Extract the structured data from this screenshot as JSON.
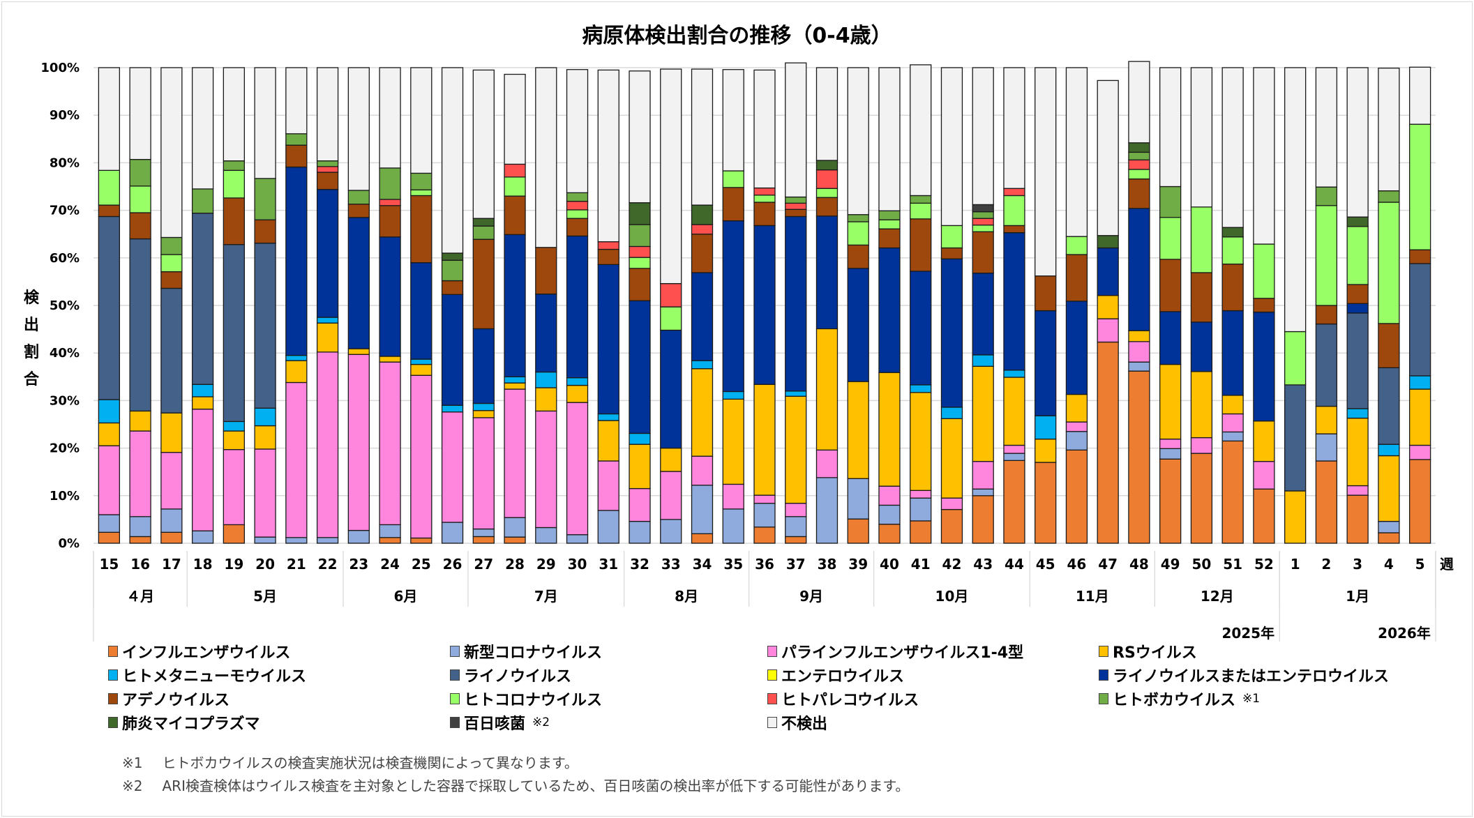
{
  "title": "病原体検出割合の推移（0-4歳）",
  "ylabel": "検出割合",
  "week_unit": "週",
  "chart_data": {
    "type": "bar",
    "stacked": true,
    "percent": true,
    "title": "病原体検出割合の推移（0-4歳）",
    "ylabel": "検出割合",
    "xlabel": "週",
    "ylim": [
      0,
      100
    ],
    "yticks": [
      "0%",
      "10%",
      "20%",
      "30%",
      "40%",
      "50%",
      "60%",
      "70%",
      "80%",
      "90%",
      "100%"
    ],
    "grid": true,
    "legend_position": "bottom",
    "categories": [
      "15",
      "16",
      "17",
      "18",
      "19",
      "20",
      "21",
      "22",
      "23",
      "24",
      "25",
      "26",
      "27",
      "28",
      "29",
      "30",
      "31",
      "32",
      "33",
      "34",
      "35",
      "36",
      "37",
      "38",
      "39",
      "40",
      "41",
      "42",
      "43",
      "44",
      "45",
      "46",
      "47",
      "48",
      "49",
      "50",
      "51",
      "52",
      "1",
      "2",
      "3",
      "4",
      "5"
    ],
    "months": [
      {
        "label": "４月",
        "start": 0,
        "end": 2
      },
      {
        "label": "5月",
        "start": 3,
        "end": 7
      },
      {
        "label": "6月",
        "start": 8,
        "end": 11
      },
      {
        "label": "7月",
        "start": 12,
        "end": 16
      },
      {
        "label": "8月",
        "start": 17,
        "end": 20
      },
      {
        "label": "9月",
        "start": 21,
        "end": 24
      },
      {
        "label": "10月",
        "start": 25,
        "end": 29
      },
      {
        "label": "11月",
        "start": 30,
        "end": 33
      },
      {
        "label": "12月",
        "start": 34,
        "end": 37
      },
      {
        "label": "1月",
        "start": 38,
        "end": 42
      }
    ],
    "years": [
      {
        "label": "2025年",
        "start": 0,
        "end": 37
      },
      {
        "label": "2026年",
        "start": 38,
        "end": 42
      }
    ],
    "series": [
      {
        "name": "インフルエンザウイルス",
        "color": "#ED7D31",
        "values": [
          2.3,
          1.4,
          2.3,
          0,
          3.9,
          0,
          0,
          0,
          0,
          1.2,
          1.1,
          0,
          1.4,
          1.3,
          0,
          0,
          0,
          0,
          0,
          2.0,
          0,
          3.4,
          1.4,
          0,
          5.1,
          4.0,
          4.7,
          7.1,
          10.0,
          17.4,
          17.0,
          19.6,
          42.3,
          36.2,
          17.7,
          18.9,
          21.5,
          11.4,
          0,
          17.3,
          10.1,
          2.2,
          17.6
        ]
      },
      {
        "name": "新型コロナウイルス",
        "color": "#8FAADC",
        "values": [
          3.7,
          4.2,
          4.9,
          2.6,
          0,
          1.3,
          1.2,
          1.2,
          2.7,
          2.7,
          0,
          4.4,
          1.6,
          4.1,
          3.3,
          1.8,
          6.9,
          4.6,
          5.0,
          10.2,
          7.2,
          5.0,
          4.2,
          13.8,
          8.5,
          4.0,
          4.8,
          0,
          1.4,
          1.5,
          0,
          3.9,
          0,
          1.9,
          2.2,
          0,
          1.9,
          0,
          0,
          5.7,
          0,
          2.4,
          0
        ]
      },
      {
        "name": "パラインフルエンザウイルス1-4型",
        "color": "#FF85DD",
        "values": [
          14.5,
          18.0,
          11.9,
          25.6,
          15.8,
          18.5,
          32.6,
          39.0,
          37.0,
          34.2,
          34.2,
          23.2,
          23.4,
          27.0,
          24.5,
          27.8,
          10.4,
          6.9,
          10.1,
          6.1,
          5.2,
          1.7,
          2.8,
          5.8,
          0,
          4.0,
          1.6,
          2.4,
          5.8,
          1.7,
          0,
          2.0,
          4.9,
          4.3,
          2.0,
          3.3,
          3.8,
          5.8,
          0,
          0,
          2.0,
          0,
          3.0
        ]
      },
      {
        "name": "RSウイルス",
        "color": "#FFC000",
        "values": [
          4.8,
          4.2,
          8.3,
          2.6,
          3.9,
          4.9,
          4.6,
          6.1,
          1.2,
          1.2,
          2.3,
          0,
          1.5,
          1.3,
          4.9,
          3.6,
          8.5,
          9.3,
          4.9,
          18.4,
          17.9,
          23.3,
          22.5,
          25.5,
          20.4,
          23.9,
          20.6,
          16.7,
          20.0,
          14.3,
          4.9,
          5.8,
          4.9,
          2.3,
          15.7,
          13.9,
          3.9,
          8.5,
          11.0,
          5.8,
          14.2,
          13.8,
          11.8
        ]
      },
      {
        "name": "ヒトメタニューモウイルス",
        "color": "#00B0F0",
        "values": [
          4.9,
          0,
          0,
          2.6,
          2.0,
          3.7,
          1.1,
          1.2,
          0,
          0,
          1.1,
          1.4,
          1.5,
          1.3,
          3.3,
          1.6,
          1.4,
          2.3,
          0,
          1.7,
          1.6,
          0,
          1.1,
          0,
          0,
          0,
          1.6,
          2.4,
          2.4,
          1.5,
          4.9,
          0,
          0,
          0,
          0,
          0,
          0,
          0,
          0,
          0,
          2.0,
          2.4,
          2.8
        ]
      },
      {
        "name": "ライノウイルス",
        "color": "#44618A",
        "values": [
          38.5,
          36.2,
          26.2,
          36.0,
          37.2,
          34.7,
          0,
          0,
          0,
          0,
          0,
          0,
          0,
          0,
          0,
          0,
          0,
          0,
          0,
          0,
          0,
          0,
          0,
          0,
          0,
          0,
          0,
          0,
          0,
          0,
          0,
          0,
          0,
          0,
          0,
          0,
          0,
          0,
          22.3,
          17.3,
          20.1,
          16.1,
          23.6
        ]
      },
      {
        "name": "エンテロウイルス",
        "color": "#FFFF00",
        "values": [
          0,
          0,
          0,
          0,
          0,
          0,
          0,
          0,
          0,
          0,
          0,
          0,
          0,
          0,
          0,
          0,
          0,
          0,
          0,
          0,
          0,
          0,
          0,
          0,
          0,
          0,
          0,
          0,
          0,
          0,
          0,
          0,
          0,
          0,
          0,
          0,
          0,
          0,
          0,
          0,
          0,
          0,
          0
        ]
      },
      {
        "name": "ライノウイルスまたはエンテロウイルス",
        "color": "#003399",
        "values": [
          0,
          0,
          0,
          0,
          0,
          0,
          39.6,
          26.9,
          27.6,
          25.1,
          20.3,
          23.3,
          15.7,
          29.9,
          16.4,
          29.8,
          31.4,
          27.9,
          24.8,
          18.5,
          35.9,
          33.4,
          36.7,
          23.7,
          23.8,
          26.2,
          23.9,
          31.2,
          17.2,
          28.9,
          22.1,
          19.6,
          10.0,
          25.7,
          11.1,
          10.4,
          17.8,
          22.9,
          0,
          0,
          2.0,
          0,
          0
        ]
      },
      {
        "name": "アデノウイルス",
        "color": "#9E480E",
        "values": [
          2.4,
          5.5,
          3.5,
          0,
          9.8,
          4.9,
          4.6,
          3.6,
          2.8,
          6.6,
          14.1,
          2.9,
          18.8,
          8.1,
          9.8,
          3.7,
          3.2,
          6.8,
          0,
          8.1,
          7.0,
          4.9,
          1.5,
          3.9,
          4.9,
          4.0,
          11.0,
          2.3,
          8.7,
          1.5,
          7.3,
          9.8,
          0,
          6.2,
          11.0,
          10.4,
          9.8,
          2.9,
          0,
          3.9,
          4.0,
          9.3,
          2.9
        ]
      },
      {
        "name": "ヒトコロナウイルス",
        "color": "#99FF66",
        "values": [
          7.3,
          5.6,
          3.6,
          0,
          5.8,
          0,
          0,
          0,
          0,
          0,
          1.2,
          0,
          0,
          4.0,
          0,
          1.8,
          0,
          2.3,
          4.9,
          0,
          3.5,
          1.5,
          0,
          1.9,
          4.9,
          1.9,
          3.3,
          4.7,
          1.4,
          6.3,
          0,
          3.8,
          0,
          2.0,
          8.8,
          13.8,
          5.7,
          11.4,
          11.2,
          21.0,
          12.2,
          25.5,
          26.4
        ]
      },
      {
        "name": "ヒトパレコウイルス",
        "color": "#FF5050",
        "values": [
          0,
          0,
          0,
          0,
          0,
          0,
          0,
          1.2,
          0,
          1.3,
          0,
          0,
          0,
          2.7,
          0,
          1.8,
          1.6,
          2.3,
          4.9,
          2.0,
          0,
          1.5,
          1.3,
          3.9,
          0,
          0,
          0,
          0,
          1.4,
          1.5,
          0,
          0,
          0,
          2.0,
          0,
          0,
          0,
          0,
          0,
          0,
          0,
          0,
          0
        ]
      },
      {
        "name": "ヒトボカウイルス",
        "color": "#70AD47",
        "values": [
          0,
          5.6,
          3.6,
          5.1,
          2.0,
          8.7,
          2.4,
          1.2,
          2.9,
          6.6,
          3.5,
          4.3,
          2.8,
          0,
          0,
          1.8,
          0,
          4.6,
          0,
          0,
          0,
          0,
          1.3,
          0,
          1.5,
          1.9,
          1.6,
          0,
          1.4,
          0,
          0,
          0,
          0,
          1.6,
          6.5,
          0,
          0,
          0,
          0,
          3.9,
          0,
          2.4,
          0
        ]
      },
      {
        "name": "肺炎マイコプラズマ",
        "color": "#41682B",
        "values": [
          0,
          0,
          0,
          0,
          0,
          0,
          0,
          0,
          0,
          0,
          0,
          1.5,
          1.6,
          0,
          0,
          0,
          0,
          4.6,
          0,
          4.1,
          0,
          0,
          0,
          2.0,
          0,
          0,
          0,
          0,
          0,
          0,
          0,
          0,
          2.6,
          2.0,
          0,
          0,
          2.0,
          0,
          0,
          0,
          2.0,
          0,
          0
        ]
      },
      {
        "name": "百日咳菌",
        "color": "#404040",
        "values": [
          0,
          0,
          0,
          0,
          0,
          0,
          0,
          0,
          0,
          0,
          0,
          0,
          0,
          0,
          0,
          0,
          0,
          0,
          0,
          0,
          0,
          0,
          0,
          0,
          0,
          0,
          0,
          0,
          1.5,
          0,
          0,
          0,
          0,
          0,
          0,
          0,
          0,
          0,
          0,
          0,
          0,
          0,
          0
        ]
      },
      {
        "name": "不検出",
        "color": "#F2F2F2",
        "values": [
          21.6,
          19.3,
          35.7,
          25.5,
          19.6,
          23.3,
          13.9,
          19.6,
          25.8,
          21.1,
          22.2,
          39.0,
          31.2,
          18.9,
          37.8,
          25.9,
          36.1,
          27.7,
          45.1,
          28.6,
          21.3,
          24.8,
          28.2,
          19.5,
          30.9,
          30.1,
          27.5,
          33.2,
          28.8,
          25.4,
          43.8,
          35.5,
          32.6,
          17.1,
          25.0,
          29.3,
          33.6,
          37.1,
          55.5,
          25.1,
          31.4,
          25.8,
          12.0
        ]
      }
    ]
  },
  "legend": [
    {
      "label": "インフルエンザウイルス",
      "color": "#ED7D31",
      "note": ""
    },
    {
      "label": "新型コロナウイルス",
      "color": "#8FAADC",
      "note": ""
    },
    {
      "label": "パラインフルエンザウイルス1-4型",
      "color": "#FF85DD",
      "note": ""
    },
    {
      "label": "RSウイルス",
      "color": "#FFC000",
      "note": ""
    },
    {
      "label": "ヒトメタニューモウイルス",
      "color": "#00B0F0",
      "note": ""
    },
    {
      "label": "ライノウイルス",
      "color": "#44618A",
      "note": ""
    },
    {
      "label": "エンテロウイルス",
      "color": "#FFFF00",
      "note": ""
    },
    {
      "label": "ライノウイルスまたはエンテロウイルス",
      "color": "#003399",
      "note": ""
    },
    {
      "label": "アデノウイルス",
      "color": "#9E480E",
      "note": ""
    },
    {
      "label": "ヒトコロナウイルス",
      "color": "#99FF66",
      "note": ""
    },
    {
      "label": "ヒトパレコウイルス",
      "color": "#FF5050",
      "note": ""
    },
    {
      "label": "ヒトボカウイルス",
      "color": "#70AD47",
      "note": "※1"
    },
    {
      "label": "肺炎マイコプラズマ",
      "color": "#41682B",
      "note": ""
    },
    {
      "label": "百日咳菌",
      "color": "#404040",
      "note": "※2"
    },
    {
      "label": "不検出",
      "color": "#F2F2F2",
      "note": ""
    }
  ],
  "notes": [
    {
      "mark": "※1",
      "text": "ヒトボカウイルスの検査実施状況は検査機関によって異なります。"
    },
    {
      "mark": "※2",
      "text": "ARI検査検体はウイルス検査を主対象とした容器で採取しているため、百日咳菌の検出率が低下する可能性があります。"
    }
  ]
}
